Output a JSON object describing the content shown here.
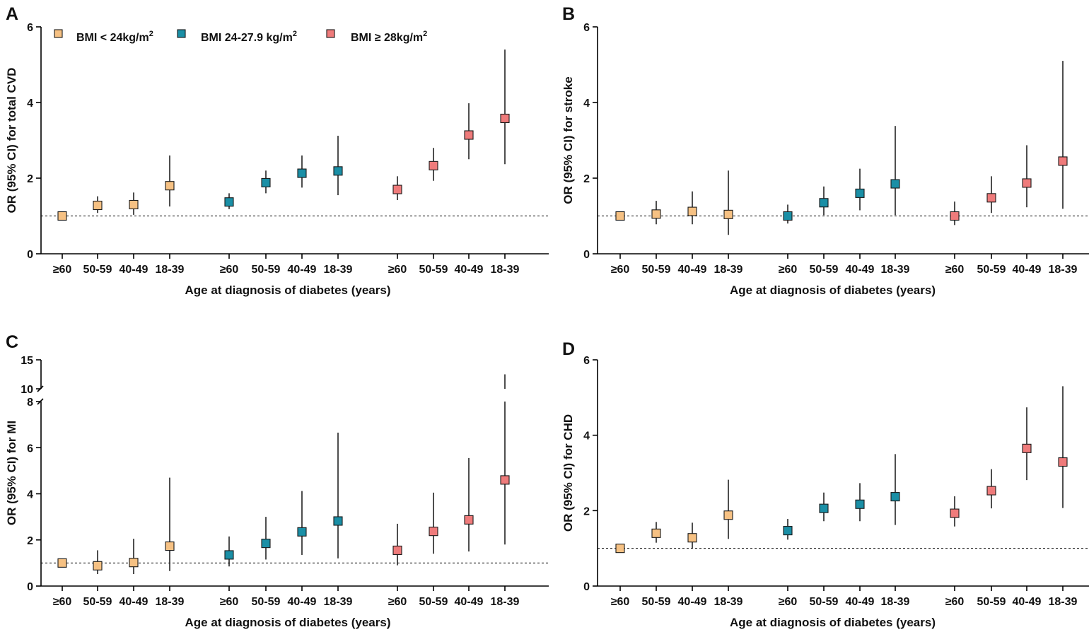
{
  "figure": {
    "shared": {
      "groups": [
        "BMI < 24kg/m2",
        "BMI 24-27.9 kg/m2",
        "BMI ≥ 28kg/m2"
      ],
      "group_colors": [
        "#f6c183",
        "#1a8fa6",
        "#ef7b7b"
      ],
      "categories": [
        "≥60",
        "50-59",
        "40-49",
        "18-39"
      ],
      "reference_value": 1
    },
    "legend": {
      "items": [
        {
          "label": "BMI < 24kg/m",
          "sup": "2",
          "color": "#f6c183"
        },
        {
          "label": "BMI 24-27.9 kg/m",
          "sup": "2",
          "color": "#1a8fa6"
        },
        {
          "label": "BMI ≥ 28kg/m",
          "sup": "2",
          "color": "#ef7b7b"
        }
      ]
    }
  },
  "chart_data": [
    {
      "panel": "A",
      "type": "scatter",
      "title": "",
      "ylabel": "OR (95% CI) for total CVD",
      "xlabel": "Age at diagnosis of diabetes (years)",
      "ylim": [
        0,
        6
      ],
      "yticks": [
        0,
        2,
        4,
        6
      ],
      "series": [
        {
          "name": "BMI < 24kg/m2",
          "or": [
            1.0,
            1.28,
            1.3,
            1.8
          ],
          "lower": [
            1.0,
            1.08,
            1.03,
            1.25
          ],
          "upper": [
            1.0,
            1.52,
            1.62,
            2.6
          ]
        },
        {
          "name": "BMI 24-27.9 kg/m2",
          "or": [
            1.37,
            1.88,
            2.13,
            2.19
          ],
          "lower": [
            1.18,
            1.6,
            1.75,
            1.55
          ],
          "upper": [
            1.6,
            2.2,
            2.6,
            3.12
          ]
        },
        {
          "name": "BMI ≥ 28kg/m2",
          "or": [
            1.7,
            2.33,
            3.14,
            3.58
          ],
          "lower": [
            1.42,
            1.93,
            2.5,
            2.37
          ],
          "upper": [
            2.05,
            2.8,
            3.98,
            5.4
          ]
        }
      ]
    },
    {
      "panel": "B",
      "type": "scatter",
      "title": "",
      "ylabel": "OR (95% CI) for stroke",
      "xlabel": "Age at diagnosis of diabetes (years)",
      "ylim": [
        0,
        6
      ],
      "yticks": [
        0,
        2,
        4,
        6
      ],
      "series": [
        {
          "name": "BMI < 24kg/m2",
          "or": [
            1.0,
            1.05,
            1.12,
            1.04
          ],
          "lower": [
            1.0,
            0.78,
            0.78,
            0.5
          ],
          "upper": [
            1.0,
            1.4,
            1.65,
            2.2
          ]
        },
        {
          "name": "BMI 24-27.9 kg/m2",
          "or": [
            1.0,
            1.35,
            1.6,
            1.85
          ],
          "lower": [
            0.8,
            1.02,
            1.15,
            1.02
          ],
          "upper": [
            1.3,
            1.78,
            2.25,
            3.38
          ]
        },
        {
          "name": "BMI ≥ 28kg/m2",
          "or": [
            1.0,
            1.48,
            1.87,
            2.45
          ],
          "lower": [
            0.76,
            1.08,
            1.23,
            1.19
          ],
          "upper": [
            1.38,
            2.05,
            2.87,
            5.1
          ]
        }
      ]
    },
    {
      "panel": "C",
      "type": "scatter",
      "title": "",
      "ylabel": "OR (95% CI) for MI",
      "xlabel": "Age at diagnosis of diabetes (years)",
      "ylim": [
        0,
        15
      ],
      "axis_break": [
        8,
        9
      ],
      "yticks": [
        0,
        2,
        4,
        6,
        8,
        10,
        15
      ],
      "series": [
        {
          "name": "BMI < 24kg/m2",
          "or": [
            1.0,
            0.88,
            1.02,
            1.73
          ],
          "lower": [
            1.0,
            0.52,
            0.52,
            0.65
          ],
          "upper": [
            1.0,
            1.55,
            2.05,
            4.7
          ]
        },
        {
          "name": "BMI 24-27.9 kg/m2",
          "or": [
            1.35,
            1.85,
            2.35,
            2.82
          ],
          "lower": [
            0.85,
            1.15,
            1.35,
            1.2
          ],
          "upper": [
            2.15,
            3.0,
            4.12,
            6.65
          ]
        },
        {
          "name": "BMI ≥ 28kg/m2",
          "or": [
            1.55,
            2.37,
            2.87,
            4.6
          ],
          "lower": [
            0.9,
            1.4,
            1.5,
            1.8
          ],
          "upper": [
            2.7,
            4.05,
            5.55,
            12.5
          ]
        }
      ]
    },
    {
      "panel": "D",
      "type": "scatter",
      "title": "",
      "ylabel": "OR (95% CI) for CHD",
      "xlabel": "Age at diagnosis of diabetes (years)",
      "ylim": [
        0,
        6
      ],
      "yticks": [
        0,
        2,
        4,
        6
      ],
      "series": [
        {
          "name": "BMI < 24kg/m2",
          "or": [
            1.0,
            1.4,
            1.28,
            1.88
          ],
          "lower": [
            1.0,
            1.15,
            1.0,
            1.25
          ],
          "upper": [
            1.0,
            1.7,
            1.68,
            2.82
          ]
        },
        {
          "name": "BMI 24-27.9 kg/m2",
          "or": [
            1.47,
            2.06,
            2.17,
            2.37
          ],
          "lower": [
            1.23,
            1.72,
            1.72,
            1.62
          ],
          "upper": [
            1.78,
            2.48,
            2.73,
            3.5
          ]
        },
        {
          "name": "BMI ≥ 28kg/m2",
          "or": [
            1.93,
            2.53,
            3.65,
            3.29
          ],
          "lower": [
            1.58,
            2.06,
            2.81,
            2.07
          ],
          "upper": [
            2.38,
            3.1,
            4.74,
            5.3
          ]
        }
      ]
    }
  ]
}
